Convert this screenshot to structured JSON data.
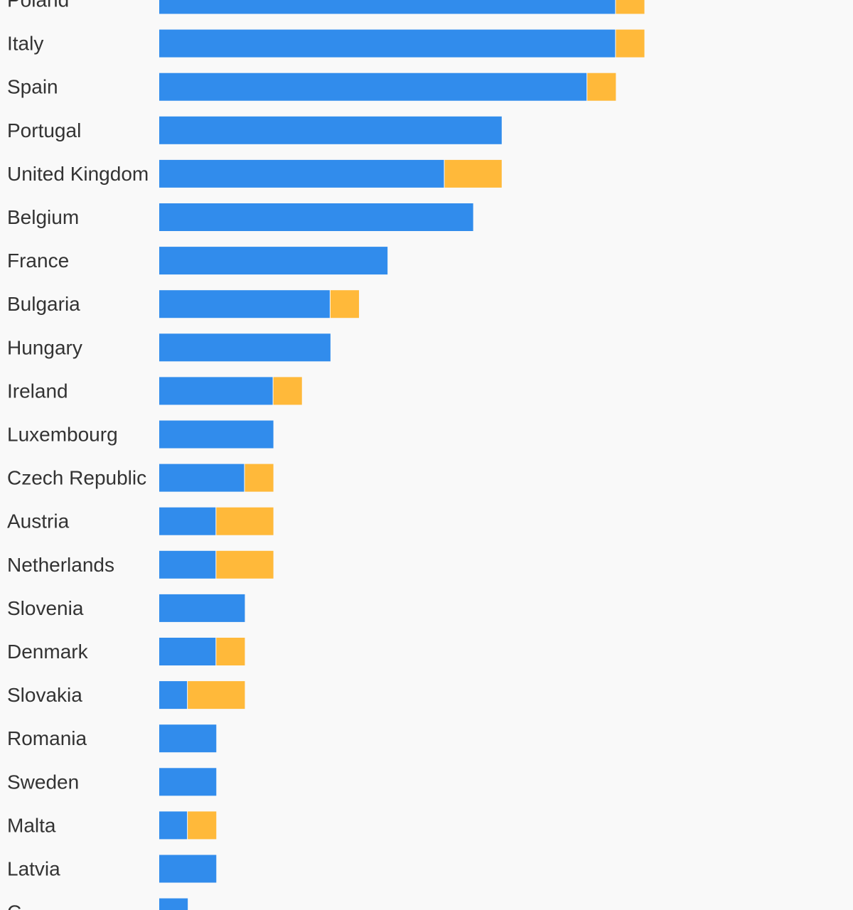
{
  "chart_data": {
    "type": "bar",
    "orientation": "horizontal",
    "stacked": true,
    "categories": [
      "Poland",
      "Italy",
      "Spain",
      "Portugal",
      "United Kingdom",
      "Belgium",
      "France",
      "Bulgaria",
      "Hungary",
      "Ireland",
      "Luxembourg",
      "Czech Republic",
      "Austria",
      "Netherlands",
      "Slovenia",
      "Denmark",
      "Slovakia",
      "Romania",
      "Sweden",
      "Malta",
      "Latvia",
      "C"
    ],
    "series": [
      {
        "color": "#318cec",
        "values": [
          16,
          16,
          15,
          12,
          10,
          11,
          8,
          6,
          6,
          4,
          4,
          3,
          2,
          2,
          3,
          2,
          1,
          2,
          2,
          1,
          2,
          1
        ]
      },
      {
        "color": "#ffb93a",
        "values": [
          1,
          1,
          1,
          0,
          2,
          0,
          0,
          1,
          0,
          1,
          0,
          1,
          2,
          2,
          0,
          1,
          2,
          0,
          0,
          1,
          0,
          0
        ]
      }
    ],
    "xlim": [
      0,
      24
    ],
    "grid": false,
    "legend": "none"
  }
}
